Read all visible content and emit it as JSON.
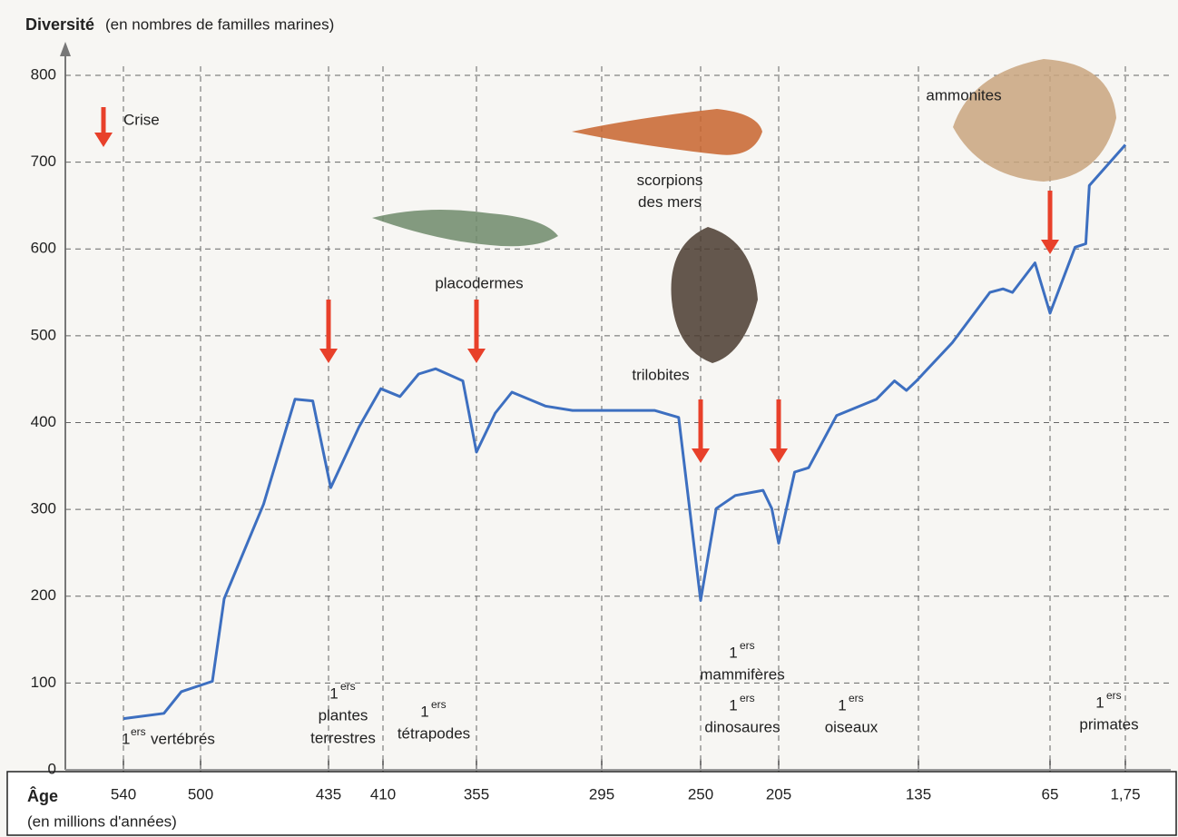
{
  "chart_data": {
    "type": "line",
    "title": "Diversité",
    "subtitle": "(en nombres de familles marines)",
    "x_label": "Âge",
    "x_sublabel": "(en millions d'années)",
    "x": [
      540,
      519,
      510,
      494,
      488,
      468,
      452,
      443,
      434,
      421,
      411,
      400,
      389,
      379,
      363,
      355,
      346,
      338,
      322,
      309,
      295,
      271,
      260,
      250,
      241,
      230,
      214,
      209,
      205,
      197,
      190,
      176,
      156,
      147,
      141,
      136,
      117,
      97,
      90,
      85,
      73,
      65,
      44,
      35,
      32,
      1.75
    ],
    "series": [
      {
        "name": "Diversité",
        "color": "#3d6fc0",
        "values": [
          59,
          65,
          90,
          102,
          197,
          306,
          427,
          425,
          325,
          395,
          439,
          430,
          456,
          462,
          448,
          366,
          411,
          435,
          419,
          414,
          414,
          414,
          406,
          195,
          301,
          316,
          322,
          301,
          261,
          343,
          348,
          408,
          427,
          448,
          437,
          448,
          492,
          550,
          554,
          550,
          584,
          526,
          602,
          606,
          673,
          720
        ]
      }
    ],
    "xticks": [
      540,
      500,
      435,
      410,
      355,
      295,
      250,
      205,
      135,
      65,
      {
        "value": 1.75,
        "label": "1,75"
      }
    ],
    "ylim": [
      0,
      800
    ],
    "yticks": [
      0,
      100,
      200,
      300,
      400,
      500,
      600,
      700,
      800
    ],
    "grid": true,
    "crisis_label": "Crise",
    "crisis_color": "#e8402a",
    "crisis_ages": [
      435,
      355,
      250,
      205,
      65
    ],
    "firsts": [
      {
        "num": "1",
        "sup": "ers",
        "lines": [
          "vertébrés"
        ]
      },
      {
        "num": "1",
        "sup": "ers",
        "lines": [
          "plantes",
          "terrestres"
        ]
      },
      {
        "num": "1",
        "sup": "ers",
        "lines": [
          "tétrapodes"
        ]
      },
      {
        "num": "1",
        "sup": "ers",
        "lines": [
          "mammifères"
        ]
      },
      {
        "num": "1",
        "sup": "ers",
        "lines": [
          "dinosaures"
        ]
      },
      {
        "num": "1",
        "sup": "ers",
        "lines": [
          "oiseaux"
        ]
      },
      {
        "num": "1",
        "sup": "ers",
        "lines": [
          "primates"
        ]
      }
    ],
    "organisms": [
      "placodermes",
      "scorpions des mers",
      "trilobites",
      "ammonites"
    ]
  }
}
